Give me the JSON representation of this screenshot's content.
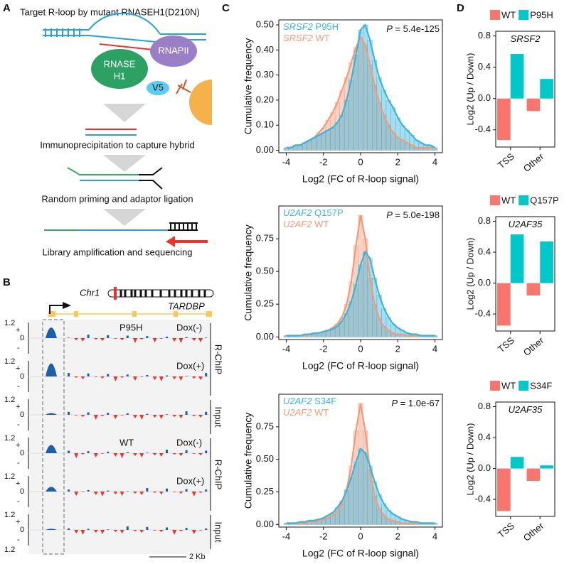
{
  "diagram": {
    "panel_labels": [
      "A",
      "B",
      "C",
      "D"
    ],
    "a": {
      "title": "Target R-loop by mutant RNASEH1(D210N)",
      "rnase": "RNASE",
      "h1": "H1",
      "rnapii": "RNAPII",
      "v5": "V5",
      "step1": "Immunoprecipitation to capture hybrid",
      "step2": "Random priming and adaptor ligation",
      "step3": "Library amplification and sequencing"
    },
    "b": {
      "chromosome": "Chr1",
      "gene": "TARDBP",
      "groups": [
        {
          "name": "P95H",
          "conditions": [
            "Dox(-)",
            "Dox(+)"
          ]
        },
        {
          "name": "WT",
          "conditions": [
            "Dox(-)",
            "Dox(+)"
          ]
        }
      ],
      "assays": [
        "R-ChIP",
        "Input",
        "R-ChIP",
        "Input"
      ],
      "tracks": [
        {
          "axis_labels": [
            "1.2",
            "+",
            "0",
            "-"
          ],
          "tss_signal": 0.9
        },
        {
          "axis_labels": [
            "1.2",
            "+",
            "0",
            "-"
          ],
          "tss_signal": 1.1
        },
        {
          "axis_labels": [
            "1.2",
            "+",
            "0",
            "-"
          ],
          "tss_signal": 0.15
        },
        {
          "axis_labels": [
            "1.2",
            "+",
            "0",
            "-"
          ],
          "tss_signal": 0.7
        },
        {
          "axis_labels": [
            "1.2",
            "+",
            "0",
            "-"
          ],
          "tss_signal": 0.4
        },
        {
          "axis_labels": [
            "1.2",
            "+",
            "0",
            "-"
          ],
          "tss_signal": 0.1
        }
      ],
      "bottom_label": "1.2",
      "scale_bar": "2 Kb"
    }
  },
  "chart_data": [
    {
      "type": "line",
      "x_label": "Log2 (FC of R-loop signal)",
      "y_label": "Cumulative frequency",
      "annotation": "P = 5.4e-125",
      "x": [
        -4,
        -3.75,
        -3.5,
        -3.25,
        -3,
        -2.75,
        -2.5,
        -2.25,
        -2,
        -1.75,
        -1.5,
        -1.25,
        -1,
        -0.75,
        -0.5,
        -0.25,
        0,
        0.25,
        0.5,
        0.75,
        1,
        1.25,
        1.5,
        1.75,
        2,
        2.25,
        2.5,
        2.75,
        3,
        3.25,
        3.5,
        3.75,
        4
      ],
      "series": [
        {
          "name": "SRSF2 P95H",
          "color": "#3ab4dc",
          "values": [
            0.01,
            0.01,
            0.02,
            0.02,
            0.03,
            0.04,
            0.05,
            0.06,
            0.07,
            0.08,
            0.09,
            0.11,
            0.14,
            0.2,
            0.28,
            0.38,
            0.48,
            0.5,
            0.44,
            0.36,
            0.29,
            0.24,
            0.2,
            0.17,
            0.13,
            0.1,
            0.08,
            0.06,
            0.04,
            0.03,
            0.02,
            0.02,
            0.01
          ]
        },
        {
          "name": "SRSF2 WT",
          "color": "#f59a78",
          "values": [
            0.01,
            0.01,
            0.02,
            0.02,
            0.03,
            0.04,
            0.05,
            0.07,
            0.09,
            0.12,
            0.15,
            0.19,
            0.24,
            0.29,
            0.35,
            0.41,
            0.45,
            0.42,
            0.34,
            0.26,
            0.19,
            0.14,
            0.1,
            0.07,
            0.05,
            0.04,
            0.03,
            0.02,
            0.01,
            0.01,
            0.01,
            0.01,
            0.01
          ]
        }
      ],
      "xlim": [
        -4.4,
        4.4
      ],
      "xticks": [
        -4,
        -2,
        0,
        2,
        4
      ],
      "ylim": [
        -0.01,
        0.52
      ],
      "yticks": [
        {
          "value": 0,
          "label": "0.00"
        },
        {
          "value": 0.1,
          "label": "0.10"
        },
        {
          "value": 0.2,
          "label": "0.20"
        },
        {
          "value": 0.3,
          "label": "0.30"
        },
        {
          "value": 0.4,
          "label": "0.40"
        },
        {
          "value": 0.5,
          "label": "0.50"
        }
      ]
    },
    {
      "type": "line",
      "x_label": "Log2 (FC of R-loop signal)",
      "y_label": "Cumulative frequency",
      "annotation": "P = 5.0e-198",
      "x": [
        -4,
        -3.75,
        -3.5,
        -3.25,
        -3,
        -2.75,
        -2.5,
        -2.25,
        -2,
        -1.75,
        -1.5,
        -1.25,
        -1,
        -0.75,
        -0.5,
        -0.25,
        0,
        0.25,
        0.5,
        0.75,
        1,
        1.25,
        1.5,
        1.75,
        2,
        2.25,
        2.5,
        2.75,
        3,
        3.25,
        3.5,
        3.75,
        4
      ],
      "series": [
        {
          "name": "U2AF2 Q157P",
          "color": "#3ab4dc",
          "values": [
            0.01,
            0.01,
            0.01,
            0.01,
            0.02,
            0.02,
            0.03,
            0.03,
            0.04,
            0.05,
            0.06,
            0.08,
            0.12,
            0.18,
            0.27,
            0.4,
            0.55,
            0.65,
            0.6,
            0.45,
            0.32,
            0.22,
            0.15,
            0.1,
            0.07,
            0.05,
            0.03,
            0.02,
            0.02,
            0.01,
            0.01,
            0.01,
            0.01
          ]
        },
        {
          "name": "U2AF2 WT",
          "color": "#f59a78",
          "values": [
            0.01,
            0.01,
            0.01,
            0.01,
            0.01,
            0.02,
            0.02,
            0.03,
            0.04,
            0.05,
            0.07,
            0.1,
            0.15,
            0.25,
            0.42,
            0.7,
            0.93,
            0.75,
            0.45,
            0.25,
            0.14,
            0.08,
            0.05,
            0.03,
            0.02,
            0.02,
            0.01,
            0.01,
            0.01,
            0.01,
            0.01,
            0.01,
            0.01
          ]
        }
      ],
      "xlim": [
        -4.4,
        4.4
      ],
      "xticks": [
        -4,
        -2,
        0,
        2,
        4
      ],
      "ylim": [
        -0.02,
        1.0
      ],
      "yticks": [
        {
          "value": 0,
          "label": "0.00"
        },
        0.25,
        {
          "value": 0.5,
          "label": "0.50"
        },
        0.75
      ]
    },
    {
      "type": "line",
      "x_label": "Log2 (FC of R-loop signal)",
      "y_label": "Cumulative frequency",
      "annotation": "P = 1.0e-67",
      "x": [
        -4,
        -3.75,
        -3.5,
        -3.25,
        -3,
        -2.75,
        -2.5,
        -2.25,
        -2,
        -1.75,
        -1.5,
        -1.25,
        -1,
        -0.75,
        -0.5,
        -0.25,
        0,
        0.25,
        0.5,
        0.75,
        1,
        1.25,
        1.5,
        1.75,
        2,
        2.25,
        2.5,
        2.75,
        3,
        3.25,
        3.5,
        3.75,
        4
      ],
      "series": [
        {
          "name": "U2AF2 S34F",
          "color": "#3ab4dc",
          "values": [
            0.01,
            0.01,
            0.01,
            0.02,
            0.02,
            0.03,
            0.03,
            0.04,
            0.05,
            0.07,
            0.09,
            0.13,
            0.18,
            0.26,
            0.36,
            0.48,
            0.58,
            0.55,
            0.45,
            0.33,
            0.23,
            0.16,
            0.11,
            0.08,
            0.06,
            0.04,
            0.03,
            0.02,
            0.02,
            0.01,
            0.01,
            0.01,
            0.01
          ]
        },
        {
          "name": "U2AF2 WT",
          "color": "#f59a78",
          "values": [
            0.01,
            0.01,
            0.01,
            0.01,
            0.01,
            0.02,
            0.02,
            0.03,
            0.04,
            0.05,
            0.07,
            0.1,
            0.16,
            0.27,
            0.45,
            0.72,
            0.93,
            0.72,
            0.42,
            0.22,
            0.12,
            0.07,
            0.04,
            0.03,
            0.02,
            0.01,
            0.01,
            0.01,
            0.01,
            0.01,
            0.01,
            0.01,
            0.01
          ]
        }
      ],
      "xlim": [
        -4.4,
        4.4
      ],
      "xticks": [
        -4,
        -2,
        0,
        2,
        4
      ],
      "ylim": [
        -0.02,
        1.0
      ],
      "yticks": [
        {
          "value": 0,
          "label": "0.00"
        },
        0.25,
        {
          "value": 0.5,
          "label": "0.50"
        },
        0.75
      ]
    },
    {
      "type": "bar",
      "title": "SRSF2",
      "y_label": "Log2 (Up / Down)",
      "categories": [
        "TSS",
        "Other"
      ],
      "series": [
        {
          "name": "WT",
          "color": "#f8766d",
          "values": [
            -0.53,
            -0.16
          ]
        },
        {
          "name": "P95H",
          "color": "#00c8c8",
          "values": [
            0.57,
            0.25
          ]
        }
      ],
      "ylim": [
        -0.62,
        0.86
      ],
      "yticks": [
        -0.4,
        {
          "value": 0,
          "label": "0.0"
        },
        0.4,
        0.8
      ]
    },
    {
      "type": "bar",
      "title": "U2AF35",
      "y_label": "Log2 (Up / Down)",
      "categories": [
        "TSS",
        "Other"
      ],
      "series": [
        {
          "name": "WT",
          "color": "#f8766d",
          "values": [
            -0.55,
            -0.16
          ]
        },
        {
          "name": "Q157P",
          "color": "#00c8c8",
          "values": [
            0.63,
            0.54
          ]
        }
      ],
      "ylim": [
        -0.62,
        0.86
      ],
      "yticks": [
        -0.4,
        {
          "value": 0,
          "label": "0.0"
        },
        0.4,
        0.8
      ]
    },
    {
      "type": "bar",
      "title": "U2AF35",
      "y_label": "Log2 (Up / Down)",
      "categories": [
        "TSS",
        "Other"
      ],
      "series": [
        {
          "name": "WT",
          "color": "#f8766d",
          "values": [
            -0.55,
            -0.16
          ]
        },
        {
          "name": "S34F",
          "color": "#00c8c8",
          "values": [
            0.15,
            0.04
          ]
        }
      ],
      "ylim": [
        -0.62,
        0.86
      ],
      "yticks": [
        -0.4,
        {
          "value": 0,
          "label": "0.0"
        },
        0.4,
        0.8
      ]
    }
  ]
}
